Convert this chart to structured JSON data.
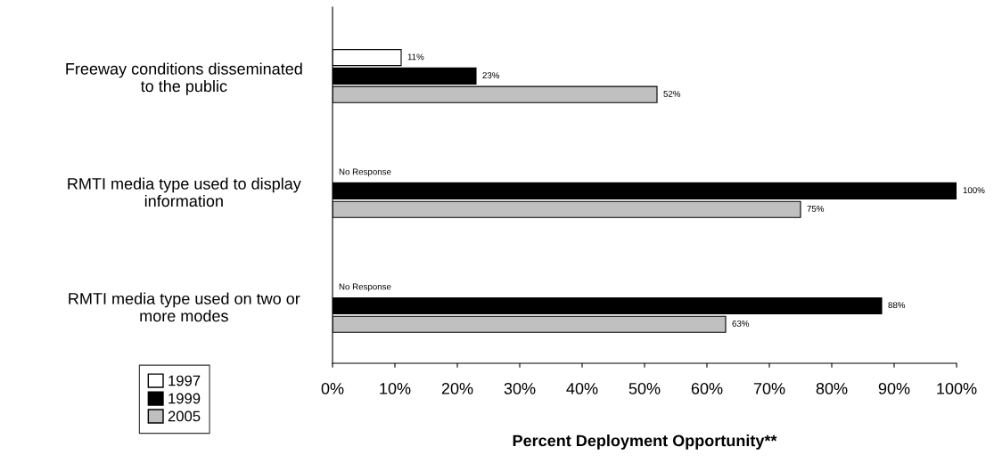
{
  "chart_data": {
    "type": "bar",
    "orientation": "horizontal",
    "xlabel": "Percent Deployment Opportunity**",
    "categories": [
      "Freeway conditions disseminated\nto the public",
      "RMTI media type used to display\ninformation",
      "RMTI media type used on two or\nmore modes"
    ],
    "series": [
      {
        "name": "1997",
        "color": "#ffffff",
        "values": [
          11,
          null,
          null
        ],
        "value_labels": [
          "11%",
          "No Response",
          "No Response"
        ]
      },
      {
        "name": "1999",
        "color": "#000000",
        "values": [
          23,
          100,
          88
        ],
        "value_labels": [
          "23%",
          "100%",
          "88%"
        ]
      },
      {
        "name": "2005",
        "color": "#c0c0c0",
        "values": [
          52,
          75,
          63
        ],
        "value_labels": [
          "52%",
          "75%",
          "63%"
        ]
      }
    ],
    "xlim": [
      0,
      100
    ],
    "xticks": [
      {
        "value": 0,
        "label": "0%"
      },
      {
        "value": 10,
        "label": "10%"
      },
      {
        "value": 20,
        "label": "20%"
      },
      {
        "value": 30,
        "label": "30%"
      },
      {
        "value": 40,
        "label": "40%"
      },
      {
        "value": 50,
        "label": "50%"
      },
      {
        "value": 60,
        "label": "60%"
      },
      {
        "value": 70,
        "label": "70%"
      },
      {
        "value": 80,
        "label": "80%"
      },
      {
        "value": 90,
        "label": "90%"
      },
      {
        "value": 100,
        "label": "100%"
      }
    ],
    "grid": false,
    "legend": "bottom left"
  }
}
